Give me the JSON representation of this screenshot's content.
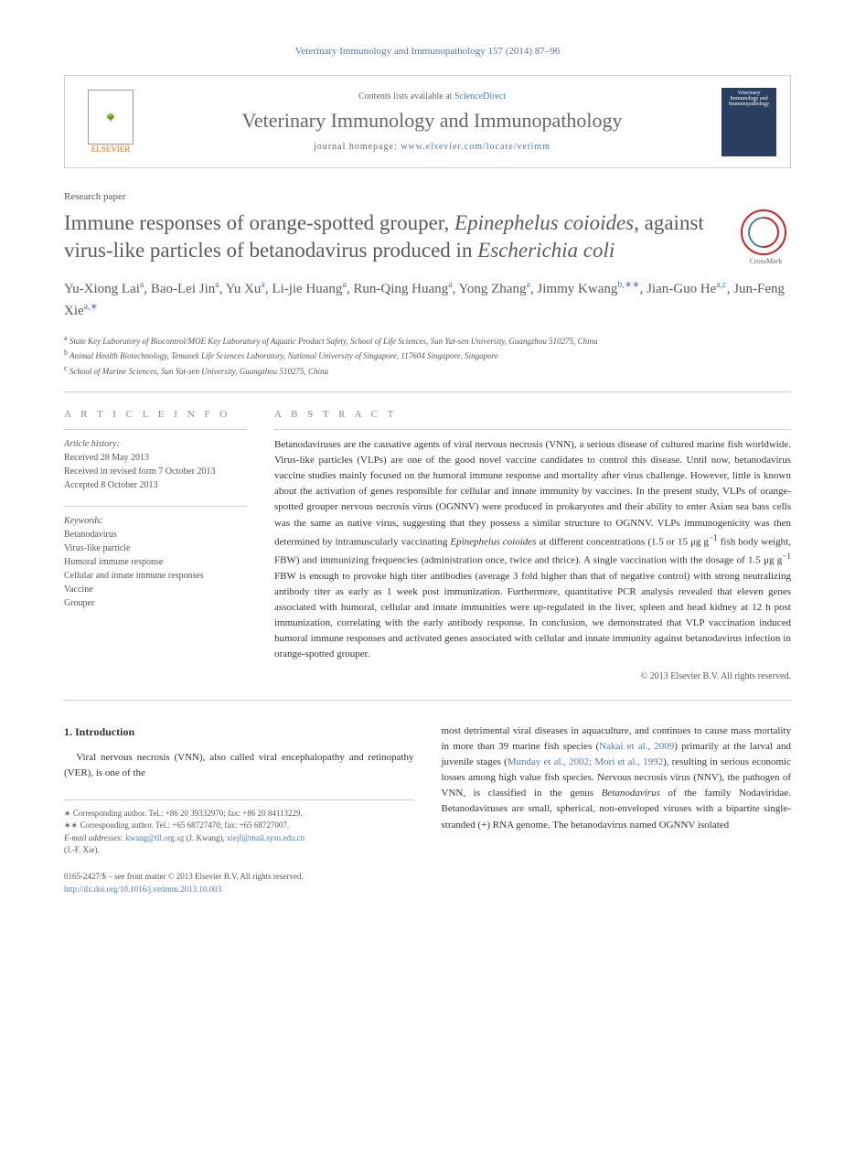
{
  "journal_ref": "Veterinary Immunology and Immunopathology 157 (2014) 87–96",
  "header": {
    "elsevier_label": "ELSEVIER",
    "contents_prefix": "Contents lists available at ",
    "contents_link": "ScienceDirect",
    "journal_title": "Veterinary Immunology and Immunopathology",
    "homepage_prefix": "journal homepage: ",
    "homepage_link": "www.elsevier.com/locate/vetimm",
    "cover_text": "Veterinary Immunology and Immunopathology"
  },
  "paper_type": "Research paper",
  "title_parts": {
    "p1": "Immune responses of orange-spotted grouper, ",
    "p2_italic": "Epinephelus coioides",
    "p3": ", against virus-like particles of betanodavirus produced in ",
    "p4_italic": "Escherichia coli"
  },
  "crossmark_label": "CrossMark",
  "authors_html": "Yu-Xiong Lai<sup>a</sup>, Bao-Lei Jin<sup>a</sup>, Yu Xu<sup>a</sup>, Li-jie Huang<sup>a</sup>, Run-Qing Huang<sup>a</sup>, Yong Zhang<sup>a</sup>, Jimmy Kwang<sup>b,∗∗</sup>, Jian-Guo He<sup>a,c</sup>, Jun-Feng Xie<sup>a,∗</sup>",
  "affiliations": [
    {
      "sup": "a",
      "text": "State Key Laboratory of Biocontrol/MOE Key Laboratory of Aquatic Product Safety, School of Life Sciences, Sun Yat-sen University, Guangzhou 510275, China"
    },
    {
      "sup": "b",
      "text": "Animal Health Biotechnology, Temasek Life Sciences Laboratory, National University of Singapore, 117604 Singapore, Singapore"
    },
    {
      "sup": "c",
      "text": "School of Marine Sciences, Sun Yat-sen University, Guangzhou 510275, China"
    }
  ],
  "article_info": {
    "heading": "A R T I C L E  I N F O",
    "history_label": "Article history:",
    "history": [
      "Received 28 May 2013",
      "Received in revised form 7 October 2013",
      "Accepted 8 October 2013"
    ],
    "keywords_label": "Keywords:",
    "keywords": [
      "Betanodavirus",
      "Virus-like particle",
      "Humoral immune response",
      "Cellular and innate immune responses",
      "Vaccine",
      "Grouper"
    ]
  },
  "abstract": {
    "heading": "A B S T R A C T",
    "text_html": "Betanodaviruses are the causative agents of viral nervous necrosis (VNN), a serious disease of cultured marine fish worldwide. Virus-like particles (VLPs) are one of the good novel vaccine candidates to control this disease. Until now, betanodavirus vaccine studies mainly focused on the humoral immune response and mortality after virus challenge. However, little is known about the activation of genes responsible for cellular and innate immunity by vaccines. In the present study, VLPs of orange-spotted grouper nervous necrosis virus (OGNNV) were produced in prokaryotes and their ability to enter Asian sea bass cells was the same as native virus, suggesting that they possess a similar structure to OGNNV. VLPs immunogenicity was then determined by intramuscularly vaccinating <span class=\"italic\">Epinephelus coioides</span> at different concentrations (1.5 or 15 μg g<sup>−1</sup> fish body weight, FBW) and immunizing frequencies (administration once, twice and thrice). A single vaccination with the dosage of 1.5 μg g<sup>−1</sup> FBW is enough to provoke high titer antibodies (average 3 fold higher than that of negative control) with strong neutralizing antibody titer as early as 1 week post immunization. Furthermore, quantitative PCR analysis revealed that eleven genes associated with humoral, cellular and innate immunities were up-regulated in the liver, spleen and head kidney at 12 h post immunization, correlating with the early antibody response. In conclusion, we demonstrated that VLP vaccination induced humoral immune responses and activated genes associated with cellular and innate immunity against betanodavirus infection in orange-spotted grouper.",
    "copyright": "© 2013 Elsevier B.V. All rights reserved."
  },
  "intro": {
    "heading": "1. Introduction",
    "col1_html": "Viral nervous necrosis (VNN), also called viral encephalopathy and retinopathy (VER), is one of the",
    "col2_html": "most detrimental viral diseases in aquaculture, and continues to cause mass mortality in more than 39 marine fish species (<a>Nakai et al., 2009</a>) primarily at the larval and juvenile stages (<a>Munday et al., 2002; Mori et al., 1992</a>), resulting in serious economic losses among high value fish species. Nervous necrosis virus (NNV), the pathogen of VNN, is classified in the genus <span class=\"italic\">Betanodavirus</span> of the family Nodaviridae. Betanodaviruses are small, spherical, non-enveloped viruses with a bipartite single-stranded (+) RNA genome. The betanodavirus named OGNNV isolated"
  },
  "footnotes": {
    "corr1": "∗ Corresponding author. Tel.: +86 20 39332970; fax: +86 20 84113229.",
    "corr2": "∗∗ Corresponding author. Tel.: +65 68727470; fax: +65 68727007.",
    "email_label": "E-mail addresses: ",
    "email1": "kwang@tll.org.sg",
    "email1_who": " (J. Kwang), ",
    "email2": "xiejf@mail.sysu.edu.cn",
    "email2_who": " (J.-F. Xie)."
  },
  "footer": {
    "issn_line": "0165-2427/$ – see front matter © 2013 Elsevier B.V. All rights reserved.",
    "doi": "http://dx.doi.org/10.1016/j.vetimm.2013.10.003"
  },
  "colors": {
    "link": "#4a7bb5",
    "text": "#333333",
    "muted": "#666666",
    "border": "#cccccc",
    "elsevier": "#ff6b00"
  }
}
